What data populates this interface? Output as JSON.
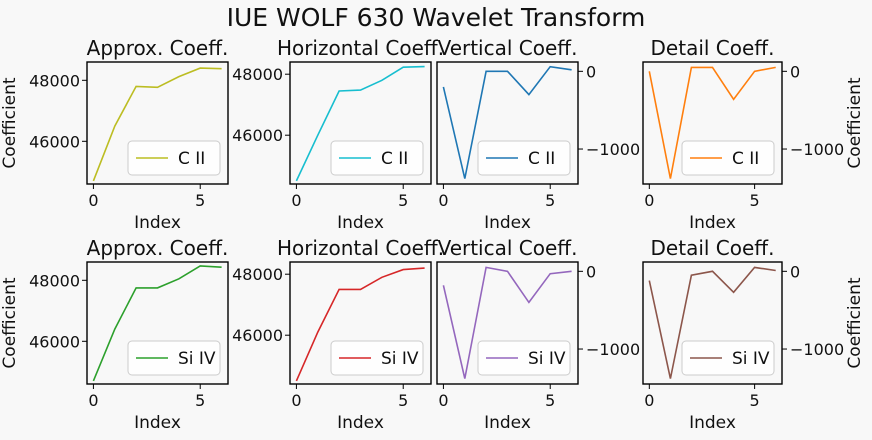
{
  "title": "IUE WOLF 630 Wavelet Transform",
  "chart_data": [
    {
      "type": "line",
      "title": "Approx. Coeff.",
      "xlabel": "Index",
      "ylabel": "Coefficient",
      "xlim": [
        -0.3,
        6.3
      ],
      "ylim": [
        44600,
        48600
      ],
      "xticks": [
        0,
        5
      ],
      "yticks": [
        46000,
        48000
      ],
      "yaxis": "left",
      "series": [
        {
          "name": "C II",
          "color": "#bcbd22",
          "x": [
            0,
            1,
            2,
            3,
            4,
            5,
            6
          ],
          "y": [
            44700,
            46500,
            47800,
            47770,
            48120,
            48400,
            48380
          ]
        }
      ]
    },
    {
      "type": "line",
      "title": "Horizontal Coeff.",
      "xlabel": "Index",
      "ylabel": "",
      "xlim": [
        -0.3,
        6.3
      ],
      "ylim": [
        44400,
        48400
      ],
      "xticks": [
        0,
        5
      ],
      "yticks": [
        46000,
        48000
      ],
      "yaxis": "left",
      "series": [
        {
          "name": "C II",
          "color": "#17becf",
          "x": [
            0,
            1,
            2,
            3,
            4,
            5,
            6
          ],
          "y": [
            44500,
            46000,
            47450,
            47480,
            47800,
            48230,
            48250
          ]
        }
      ]
    },
    {
      "type": "line",
      "title": "Vertical Coeff.",
      "xlabel": "Index",
      "ylabel": "",
      "xlim": [
        -0.3,
        6.3
      ],
      "ylim": [
        -1450,
        120
      ],
      "xticks": [
        0,
        5
      ],
      "yticks": [
        0,
        -1000
      ],
      "yaxis": "right",
      "series": [
        {
          "name": "C II",
          "color": "#1f77b4",
          "x": [
            0,
            1,
            2,
            3,
            4,
            5,
            6
          ],
          "y": [
            -200,
            -1380,
            0,
            0,
            -300,
            60,
            20
          ]
        }
      ]
    },
    {
      "type": "line",
      "title": "Detail Coeff.",
      "xlabel": "Index",
      "ylabel": "Coefficient",
      "xlim": [
        -0.3,
        6.3
      ],
      "ylim": [
        -1450,
        120
      ],
      "xticks": [
        0,
        5
      ],
      "yticks": [
        0,
        -1000
      ],
      "yaxis": "right",
      "series": [
        {
          "name": "C II",
          "color": "#ff7f0e",
          "x": [
            0,
            1,
            2,
            3,
            4,
            5,
            6
          ],
          "y": [
            0,
            -1380,
            50,
            50,
            -360,
            0,
            50
          ]
        }
      ]
    },
    {
      "type": "line",
      "title": "Approx. Coeff.",
      "xlabel": "Index",
      "ylabel": "Coefficient",
      "xlim": [
        -0.3,
        6.3
      ],
      "ylim": [
        44600,
        48600
      ],
      "xticks": [
        0,
        5
      ],
      "yticks": [
        46000,
        48000
      ],
      "yaxis": "left",
      "series": [
        {
          "name": "Si IV",
          "color": "#2ca02c",
          "x": [
            0,
            1,
            2,
            3,
            4,
            5,
            6
          ],
          "y": [
            44700,
            46400,
            47750,
            47750,
            48050,
            48470,
            48430
          ]
        }
      ]
    },
    {
      "type": "line",
      "title": "Horizontal Coeff.",
      "xlabel": "Index",
      "ylabel": "",
      "xlim": [
        -0.3,
        6.3
      ],
      "ylim": [
        44400,
        48400
      ],
      "xticks": [
        0,
        5
      ],
      "yticks": [
        46000,
        48000
      ],
      "yaxis": "left",
      "series": [
        {
          "name": "Si IV",
          "color": "#d62728",
          "x": [
            0,
            1,
            2,
            3,
            4,
            5,
            6
          ],
          "y": [
            44500,
            46100,
            47500,
            47500,
            47900,
            48150,
            48200
          ]
        }
      ]
    },
    {
      "type": "line",
      "title": "Vertical Coeff.",
      "xlabel": "Index",
      "ylabel": "",
      "xlim": [
        -0.3,
        6.3
      ],
      "ylim": [
        -1450,
        120
      ],
      "xticks": [
        0,
        5
      ],
      "yticks": [
        0,
        -1000
      ],
      "yaxis": "right",
      "series": [
        {
          "name": "Si IV",
          "color": "#9467bd",
          "x": [
            0,
            1,
            2,
            3,
            4,
            5,
            6
          ],
          "y": [
            -180,
            -1380,
            50,
            0,
            -400,
            -30,
            0
          ]
        }
      ]
    },
    {
      "type": "line",
      "title": "Detail Coeff.",
      "xlabel": "Index",
      "ylabel": "Coefficient",
      "xlim": [
        -0.3,
        6.3
      ],
      "ylim": [
        -1450,
        120
      ],
      "xticks": [
        0,
        5
      ],
      "yticks": [
        0,
        -1000
      ],
      "yaxis": "right",
      "series": [
        {
          "name": "Si IV",
          "color": "#8c564b",
          "x": [
            0,
            1,
            2,
            3,
            4,
            5,
            6
          ],
          "y": [
            -120,
            -1380,
            -50,
            0,
            -270,
            50,
            10
          ]
        }
      ]
    }
  ]
}
